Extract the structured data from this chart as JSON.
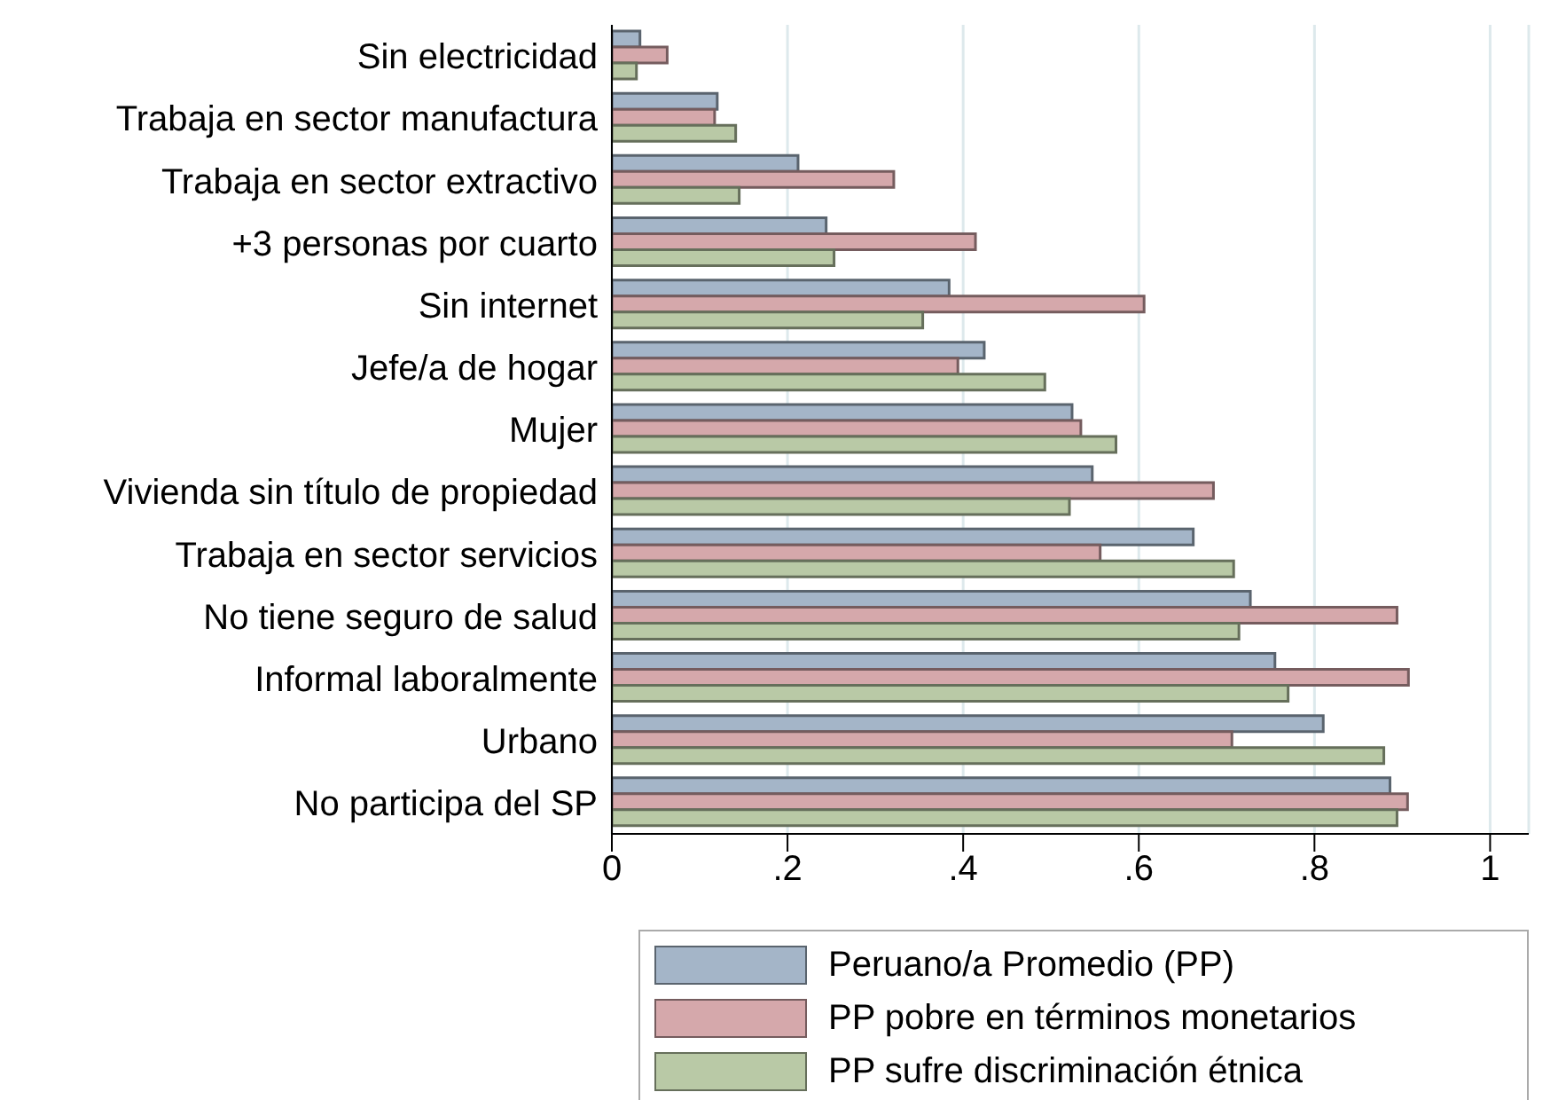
{
  "chart_data": {
    "type": "bar",
    "orientation": "horizontal",
    "categories": [
      "Sin electricidad",
      "Trabaja en sector manufactura",
      "Trabaja en sector extractivo",
      "+3 personas por cuarto",
      "Sin internet",
      "Jefe/a de hogar",
      "Mujer",
      "Vivienda sin título de propiedad",
      "Trabaja en sector servicios",
      "No tiene seguro de salud",
      "Informal laboralmente",
      "Urbano",
      "No participa del SP"
    ],
    "series": [
      {
        "name": "Peruano/a Promedio (PP)",
        "color": "#a4b5c8",
        "values": [
          0.032,
          0.12,
          0.212,
          0.244,
          0.384,
          0.424,
          0.524,
          0.547,
          0.662,
          0.727,
          0.755,
          0.81,
          0.886
        ]
      },
      {
        "name": "PP pobre en términos monetarios",
        "color": "#d5a8ab",
        "values": [
          0.063,
          0.117,
          0.321,
          0.414,
          0.606,
          0.394,
          0.534,
          0.685,
          0.556,
          0.894,
          0.907,
          0.706,
          0.906
        ]
      },
      {
        "name": "PP sufre discriminación étnica",
        "color": "#b9c9a6",
        "values": [
          0.028,
          0.141,
          0.145,
          0.253,
          0.354,
          0.493,
          0.574,
          0.521,
          0.708,
          0.714,
          0.77,
          0.879,
          0.894
        ]
      }
    ],
    "xlim": [
      0,
      1.044
    ],
    "xticks": [
      0,
      {
        "value": 0.2,
        "label": ".2"
      },
      {
        "value": 0.4,
        "label": ".4"
      },
      {
        "value": 0.6,
        "label": ".6"
      },
      {
        "value": 0.8,
        "label": ".8"
      },
      1
    ],
    "grid": "x",
    "legend": "bottom"
  }
}
